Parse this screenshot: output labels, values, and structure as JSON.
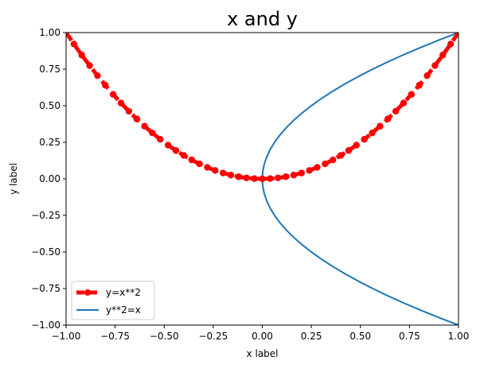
{
  "chart_data": {
    "type": "line",
    "title": "x and y",
    "xlabel": "x label",
    "ylabel": "y label",
    "xlim": [
      -1.0,
      1.0
    ],
    "ylim": [
      -1.0,
      1.0
    ],
    "xticks": [
      -1.0,
      -0.75,
      -0.5,
      -0.25,
      0.0,
      0.25,
      0.5,
      0.75,
      1.0
    ],
    "xtick_labels": [
      "−1.00",
      "−0.75",
      "−0.50",
      "−0.25",
      "0.00",
      "0.25",
      "0.50",
      "0.75",
      "1.00"
    ],
    "yticks": [
      -1.0,
      -0.75,
      -0.5,
      -0.25,
      0.0,
      0.25,
      0.5,
      0.75,
      1.0
    ],
    "ytick_labels": [
      "−1.00",
      "−0.75",
      "−0.50",
      "−0.25",
      "0.00",
      "0.25",
      "0.50",
      "0.75",
      "1.00"
    ],
    "grid": false,
    "legend_position": "lower-left",
    "series": [
      {
        "name": "y=x**2",
        "style": "dashed line with circle markers",
        "color": "#ff0000",
        "x": [
          -1.0,
          -0.96,
          -0.92,
          -0.88,
          -0.84,
          -0.8,
          -0.76,
          -0.72,
          -0.68,
          -0.64,
          -0.6,
          -0.56,
          -0.52,
          -0.48,
          -0.44,
          -0.4,
          -0.36,
          -0.32,
          -0.28,
          -0.24,
          -0.2,
          -0.16,
          -0.12,
          -0.08,
          -0.04,
          0.0,
          0.04,
          0.08,
          0.12,
          0.16,
          0.2,
          0.24,
          0.28,
          0.32,
          0.36,
          0.4,
          0.44,
          0.48,
          0.52,
          0.56,
          0.6,
          0.64,
          0.68,
          0.72,
          0.76,
          0.8,
          0.84,
          0.88,
          0.92,
          0.96,
          1.0
        ],
        "y": [
          1.0,
          0.9216,
          0.8464,
          0.7744,
          0.7056,
          0.64,
          0.5776,
          0.5184,
          0.4624,
          0.4096,
          0.36,
          0.3136,
          0.2704,
          0.2304,
          0.1936,
          0.16,
          0.1296,
          0.1024,
          0.0784,
          0.0576,
          0.04,
          0.0256,
          0.0144,
          0.0064,
          0.0016,
          0.0,
          0.0016,
          0.0064,
          0.0144,
          0.0256,
          0.04,
          0.0576,
          0.0784,
          0.1024,
          0.1296,
          0.16,
          0.1936,
          0.2304,
          0.2704,
          0.3136,
          0.36,
          0.4096,
          0.4624,
          0.5184,
          0.5776,
          0.64,
          0.7056,
          0.7744,
          0.8464,
          0.9216,
          1.0
        ]
      },
      {
        "name": "y**2=x",
        "style": "solid line",
        "color": "#1f77b4",
        "x": [
          1.0,
          0.9025,
          0.81,
          0.7225,
          0.64,
          0.5625,
          0.49,
          0.4225,
          0.36,
          0.3025,
          0.25,
          0.2025,
          0.16,
          0.1225,
          0.09,
          0.0625,
          0.04,
          0.0225,
          0.01,
          0.0025,
          0.0,
          0.0025,
          0.01,
          0.0225,
          0.04,
          0.0625,
          0.09,
          0.1225,
          0.16,
          0.2025,
          0.25,
          0.3025,
          0.36,
          0.4225,
          0.49,
          0.5625,
          0.64,
          0.7225,
          0.81,
          0.9025,
          1.0
        ],
        "y": [
          -1.0,
          -0.95,
          -0.9,
          -0.85,
          -0.8,
          -0.75,
          -0.7,
          -0.65,
          -0.6,
          -0.55,
          -0.5,
          -0.45,
          -0.4,
          -0.35,
          -0.3,
          -0.25,
          -0.2,
          -0.15,
          -0.1,
          -0.05,
          0.0,
          0.05,
          0.1,
          0.15,
          0.2,
          0.25,
          0.3,
          0.35,
          0.4,
          0.45,
          0.5,
          0.55,
          0.6,
          0.65,
          0.7,
          0.75,
          0.8,
          0.85,
          0.9,
          0.95,
          1.0
        ]
      }
    ]
  }
}
